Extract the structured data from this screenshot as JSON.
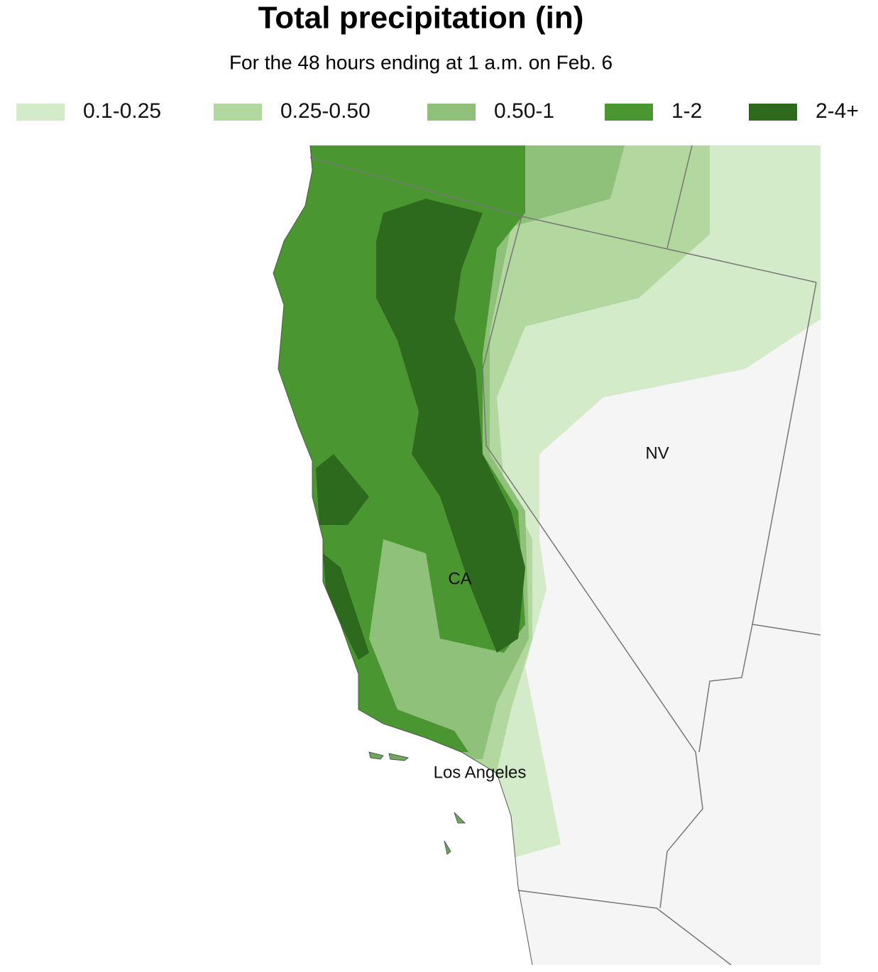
{
  "header": {
    "title": "Total precipitation (in)",
    "subtitle": "For the 48 hours ending at 1 a.m. on Feb. 6"
  },
  "legend": [
    {
      "label": "0.1-0.25",
      "color": "#d3ebc8"
    },
    {
      "label": "0.25-0.50",
      "color": "#b2d8a0"
    },
    {
      "label": "0.50-1",
      "color": "#8fc17a"
    },
    {
      "label": "1-2",
      "color": "#4a9630"
    },
    {
      "label": "2-4+",
      "color": "#2d6a1e"
    }
  ],
  "map": {
    "labels": [
      "NV",
      "CA",
      "Los Angeles"
    ]
  }
}
